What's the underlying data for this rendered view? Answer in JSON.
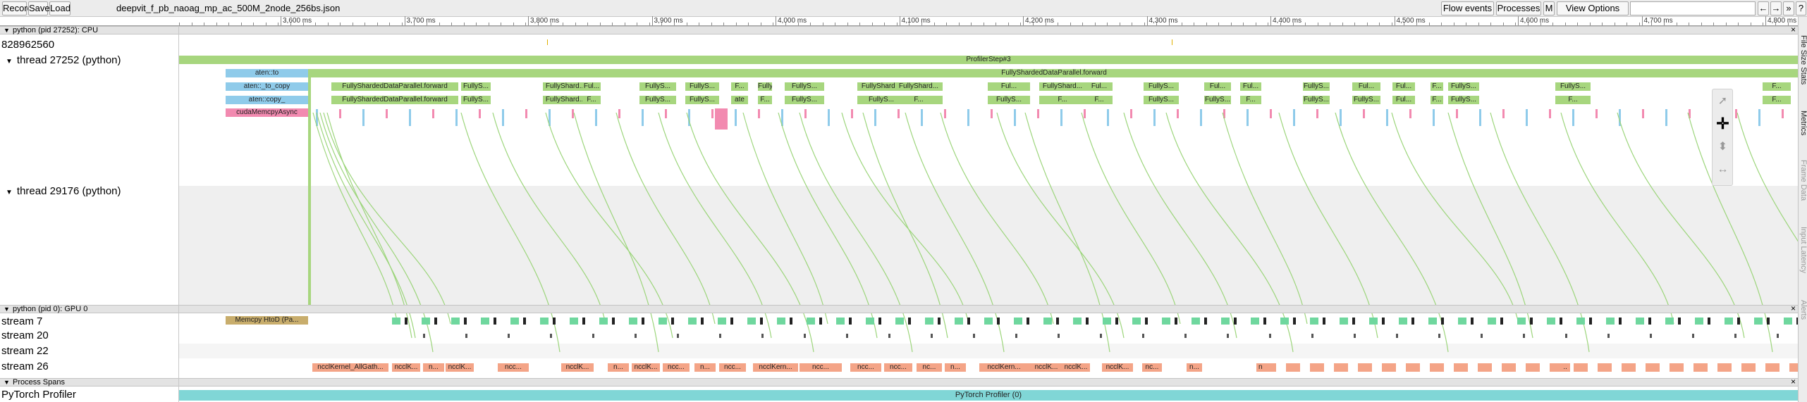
{
  "toolbar": {
    "record_label": "Record",
    "save_label": "Save",
    "load_label": "Load",
    "file_name": "deepvit_f_pb_naoag_mp_ac_500M_2node_256bs.json",
    "flow_events_label": "Flow events",
    "processes_label": "Processes",
    "m_label": "M",
    "view_options_label": "View Options",
    "search_value": "",
    "prev_label": "←",
    "next_label": "→",
    "collapse_label": "»",
    "help_label": "?"
  },
  "ruler": {
    "ticks": [
      "3,600 ms",
      "3,700 ms",
      "3,800 ms",
      "3,900 ms",
      "4,000 ms",
      "4,100 ms",
      "4,200 ms",
      "4,300 ms",
      "4,400 ms",
      "4,500 ms",
      "4,600 ms",
      "4,700 ms",
      "4,800 ms"
    ]
  },
  "process_cpu": {
    "header": "python (pid 27252): CPU",
    "counter_label": "828962560",
    "thread1": "thread 27252 (python)",
    "thread2": "thread 29176 (python)"
  },
  "cpu_slices": {
    "profiler_step": "ProfilerStep#3",
    "fsdp_forward": "FullyShardedDataParallel.forward",
    "aten_to": "aten::to",
    "aten_to_copy": "aten::_to_copy",
    "aten_copy": "aten::copy_",
    "cuda_memcpy": "cudaMemcpyAsync",
    "row3": [
      "FullyShardedDataParallel.forward",
      "FullyS...",
      "FullyShard...",
      "Ful...",
      "FullyS...",
      "FullyS...",
      "F...",
      "FullyS...",
      "FullyS...",
      "FullyShard...",
      "FullyShard...",
      "Ful...",
      "FullyShard...",
      "Ful...",
      "FullyS...",
      "Ful...",
      "Ful...",
      "FullyS...",
      "Ful...",
      "Ful...",
      "F...",
      "FullyS...",
      "FullyS...",
      "F..."
    ],
    "row4": [
      "FullyShardedDataParallel.forward",
      "FullyS...",
      "FullyShard...",
      "F...",
      "FullyS...",
      "FullyS...",
      "ate",
      "F...",
      "FullyS...",
      "FullyS...",
      "F...",
      "FullyS...",
      "F...",
      "F...",
      "FullyS...",
      "FullyS...",
      "F...",
      "FullyS...",
      "FullyS...",
      "Ful...",
      "F...",
      "FullyS...",
      "F...",
      "F..."
    ]
  },
  "process_gpu": {
    "header": "python (pid 0): GPU 0",
    "streams": [
      "stream 7",
      "stream 20",
      "stream 22",
      "stream 26"
    ],
    "memcpy_label": "Memcpy HtoD (Pa...",
    "nccl": [
      "ncclKernel_AllGath...",
      "ncclK...",
      "n...",
      "ncclK...",
      "ncc...",
      "ncclK...",
      "n...",
      "ncclK...",
      "ncc...",
      "n...",
      "ncc...",
      "ncclKern...",
      "ncc...",
      "ncc...",
      "ncc...",
      "nc...",
      "n...",
      "ncclKern...",
      "ncclK...",
      "ncclK...",
      "ncclK...",
      "nc...",
      "n...",
      "n...",
      "n..."
    ]
  },
  "process_spans": {
    "header": "Process Spans",
    "row_label": "PyTorch Profiler",
    "bar_label": "PyTorch Profiler (0)"
  },
  "side_tabs": [
    "File Size Stats",
    "Metrics",
    "Frame Data",
    "Input Latency",
    "Alerts"
  ],
  "colors": {
    "green": "#a7d67e",
    "blue": "#8fcbea",
    "pink": "#f28ab0",
    "stream_green": "#6fd79e",
    "memcpy": "#c8ad6c",
    "nccl": "#f4a487",
    "spans": "#80d6d6",
    "flow": "#9cd57b"
  }
}
